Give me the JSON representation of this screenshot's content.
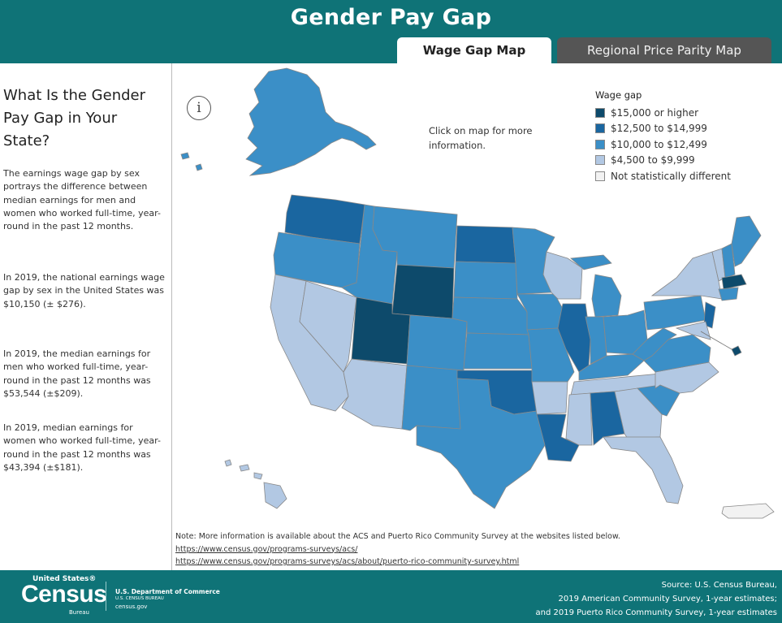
{
  "header": {
    "title": "Gender Pay Gap",
    "tabs": [
      {
        "label": "Wage Gap Map",
        "active": true
      },
      {
        "label": "Regional Price Parity Map",
        "active": false
      }
    ]
  },
  "sidebar": {
    "heading": "What Is the Gender Pay Gap in Your State?",
    "paragraphs": [
      "The earnings wage gap by sex portrays the difference between median earnings for men and women who worked full-time, year-round in the past 12 months.",
      "In 2019, the national earnings wage gap by sex in the United States was $10,150 (± $276).",
      "In 2019, the median earnings for men who worked full-time, year-round in the past 12 months was $53,544 (±$209).",
      "In 2019, median earnings for women who worked full-time, year-round in the past 12 months was $43,394 (±$181)."
    ]
  },
  "map": {
    "info_icon": "info-icon",
    "click_hint": "Click on map for more information.",
    "legend": {
      "title": "Wage gap",
      "items": [
        {
          "label": "$15,000 or higher",
          "color": "#0d4a6b"
        },
        {
          "label": "$12,500 to $14,999",
          "color": "#1a66a0"
        },
        {
          "label": "$10,000 to $12,499",
          "color": "#3b8fc7"
        },
        {
          "label": "$4,500 to $9,999",
          "color": "#b2c8e3"
        },
        {
          "label": "Not statistically different",
          "color": "#f2f2f2"
        }
      ]
    }
  },
  "note": {
    "text": "Note: More information is available about the ACS and Puerto Rico Community Survey at the websites listed below.",
    "link1": "https://www.census.gov/programs-surveys/acs/",
    "link2": "https://www.census.gov/programs-surveys/acs/about/puerto-rico-community-survey.html"
  },
  "footer": {
    "logo_top": "United States®",
    "logo_main": "Census",
    "logo_sub": "Bureau",
    "dept_line1": "U.S. Department of Commerce",
    "dept_line2": "U.S. CENSUS BUREAU",
    "dept_line3": "census.gov",
    "source_lines": [
      "Source: U.S. Census Bureau,",
      "2019 American Community Survey, 1-year estimates;",
      "and 2019 Puerto Rico Community Survey, 1-year estimates"
    ]
  }
}
